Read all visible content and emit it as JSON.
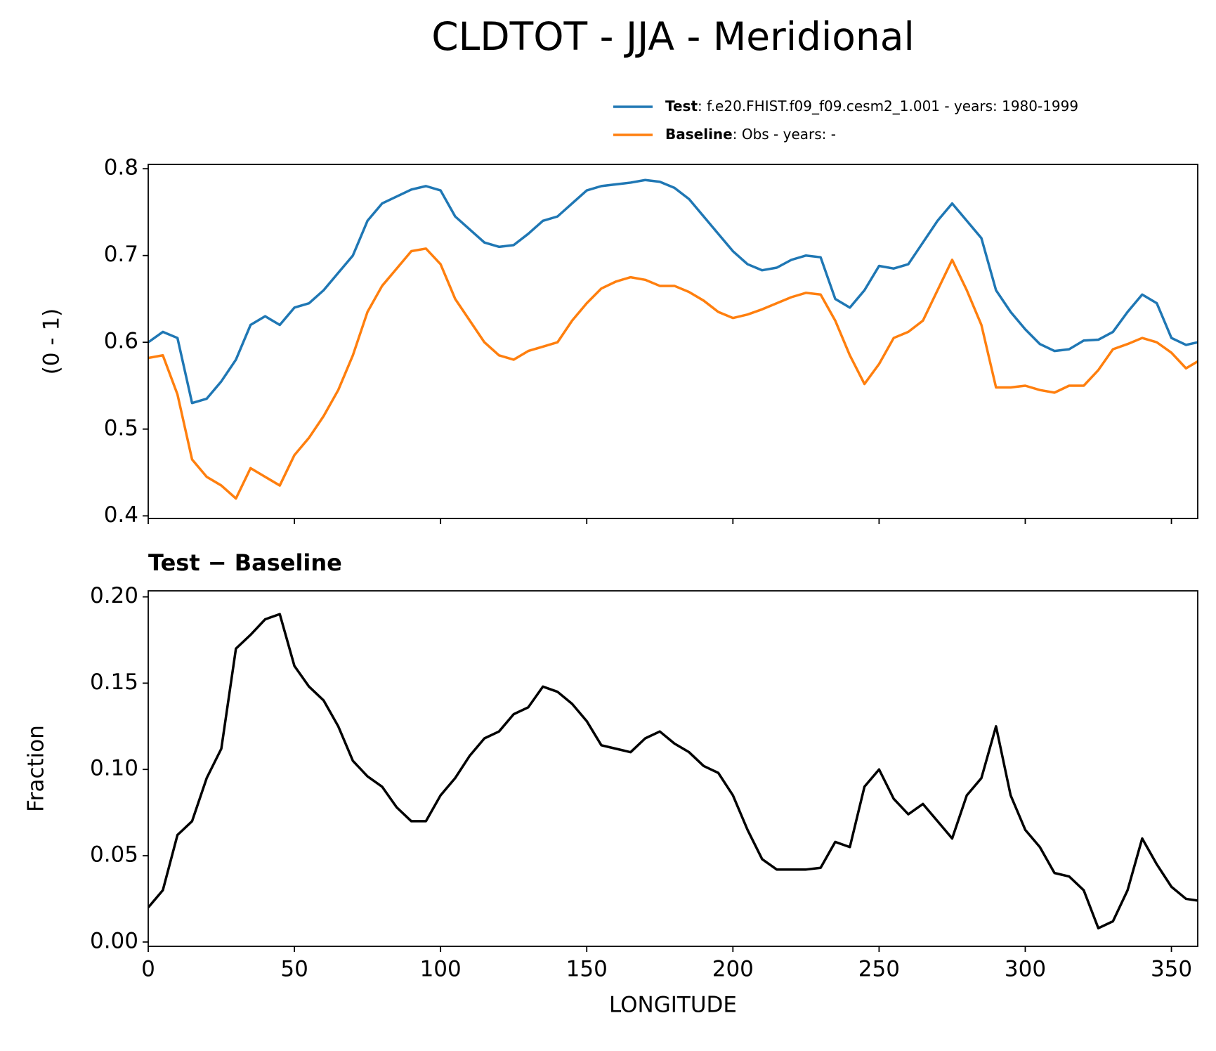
{
  "title": "CLDTOT - JJA - Meridional",
  "chart_data": [
    {
      "type": "line",
      "ylabel": "(0 - 1)",
      "x": [
        0,
        5,
        10,
        15,
        20,
        25,
        30,
        35,
        40,
        45,
        50,
        55,
        60,
        65,
        70,
        75,
        80,
        85,
        90,
        95,
        100,
        105,
        110,
        115,
        120,
        125,
        130,
        135,
        140,
        145,
        150,
        155,
        160,
        165,
        170,
        175,
        180,
        185,
        190,
        195,
        200,
        205,
        210,
        215,
        220,
        225,
        230,
        235,
        240,
        245,
        250,
        255,
        260,
        265,
        270,
        275,
        280,
        285,
        290,
        295,
        300,
        305,
        310,
        315,
        320,
        325,
        330,
        335,
        340,
        345,
        350,
        355,
        359
      ],
      "series": [
        {
          "name": "Test",
          "description": ": f.e20.FHIST.f09_f09.cesm2_1.001 - years: 1980-1999",
          "color": "#1f77b4",
          "values": [
            0.6,
            0.612,
            0.605,
            0.53,
            0.535,
            0.555,
            0.58,
            0.62,
            0.63,
            0.62,
            0.64,
            0.645,
            0.66,
            0.68,
            0.7,
            0.74,
            0.76,
            0.768,
            0.776,
            0.78,
            0.775,
            0.745,
            0.73,
            0.715,
            0.71,
            0.712,
            0.725,
            0.74,
            0.745,
            0.76,
            0.775,
            0.78,
            0.782,
            0.784,
            0.787,
            0.785,
            0.778,
            0.765,
            0.745,
            0.725,
            0.705,
            0.69,
            0.683,
            0.686,
            0.695,
            0.7,
            0.698,
            0.65,
            0.64,
            0.66,
            0.688,
            0.685,
            0.69,
            0.715,
            0.74,
            0.76,
            0.74,
            0.72,
            0.66,
            0.635,
            0.615,
            0.598,
            0.59,
            0.592,
            0.602,
            0.603,
            0.612,
            0.635,
            0.655,
            0.645,
            0.605,
            0.597,
            0.6
          ]
        },
        {
          "name": "Baseline",
          "description": ": Obs - years: -",
          "color": "#ff7f0e",
          "values": [
            0.582,
            0.585,
            0.54,
            0.465,
            0.445,
            0.435,
            0.42,
            0.455,
            0.445,
            0.435,
            0.47,
            0.49,
            0.515,
            0.545,
            0.585,
            0.635,
            0.665,
            0.685,
            0.705,
            0.708,
            0.69,
            0.65,
            0.625,
            0.6,
            0.585,
            0.58,
            0.59,
            0.595,
            0.6,
            0.625,
            0.645,
            0.662,
            0.67,
            0.675,
            0.672,
            0.665,
            0.665,
            0.658,
            0.648,
            0.635,
            0.628,
            0.632,
            0.638,
            0.645,
            0.652,
            0.657,
            0.655,
            0.625,
            0.585,
            0.552,
            0.575,
            0.605,
            0.612,
            0.625,
            0.66,
            0.695,
            0.66,
            0.62,
            0.548,
            0.548,
            0.55,
            0.545,
            0.542,
            0.55,
            0.55,
            0.568,
            0.592,
            0.598,
            0.605,
            0.6,
            0.588,
            0.57,
            0.578
          ]
        }
      ],
      "xlim": [
        0,
        359
      ],
      "xticks": [
        0,
        50,
        100,
        150,
        200,
        250,
        300,
        350
      ],
      "ylim": [
        0.397,
        0.805
      ],
      "yticks": [
        0.4,
        0.5,
        0.6,
        0.7,
        0.8
      ]
    },
    {
      "type": "line",
      "title": "Test − Baseline",
      "xlabel": "LONGITUDE",
      "ylabel": "Fraction",
      "x": [
        0,
        5,
        10,
        15,
        20,
        25,
        30,
        35,
        40,
        45,
        50,
        55,
        60,
        65,
        70,
        75,
        80,
        85,
        90,
        95,
        100,
        105,
        110,
        115,
        120,
        125,
        130,
        135,
        140,
        145,
        150,
        155,
        160,
        165,
        170,
        175,
        180,
        185,
        190,
        195,
        200,
        205,
        210,
        215,
        220,
        225,
        230,
        235,
        240,
        245,
        250,
        255,
        260,
        265,
        270,
        275,
        280,
        285,
        290,
        295,
        300,
        305,
        310,
        315,
        320,
        325,
        330,
        335,
        340,
        345,
        350,
        355,
        359
      ],
      "series": [
        {
          "color": "#000000",
          "values": [
            0.02,
            0.03,
            0.062,
            0.07,
            0.095,
            0.112,
            0.17,
            0.178,
            0.187,
            0.19,
            0.16,
            0.148,
            0.14,
            0.125,
            0.105,
            0.096,
            0.09,
            0.078,
            0.07,
            0.07,
            0.085,
            0.095,
            0.108,
            0.118,
            0.122,
            0.132,
            0.136,
            0.148,
            0.145,
            0.138,
            0.128,
            0.114,
            0.112,
            0.11,
            0.118,
            0.122,
            0.115,
            0.11,
            0.102,
            0.098,
            0.085,
            0.065,
            0.048,
            0.042,
            0.042,
            0.042,
            0.043,
            0.058,
            0.055,
            0.09,
            0.1,
            0.083,
            0.074,
            0.08,
            0.07,
            0.06,
            0.085,
            0.095,
            0.125,
            0.085,
            0.065,
            0.055,
            0.04,
            0.038,
            0.03,
            0.008,
            0.012,
            0.03,
            0.06,
            0.045,
            0.032,
            0.025,
            0.024
          ]
        }
      ],
      "xlim": [
        0,
        359
      ],
      "xticks": [
        0,
        50,
        100,
        150,
        200,
        250,
        300,
        350
      ],
      "ylim": [
        -0.0025,
        0.2035
      ],
      "yticks": [
        {
          "value": 0,
          "label": "0.00"
        },
        {
          "value": 0.05,
          "label": "0.05"
        },
        {
          "value": 0.1,
          "label": "0.10"
        },
        {
          "value": 0.15,
          "label": "0.15"
        },
        {
          "value": 0.2,
          "label": "0.20"
        }
      ]
    }
  ]
}
